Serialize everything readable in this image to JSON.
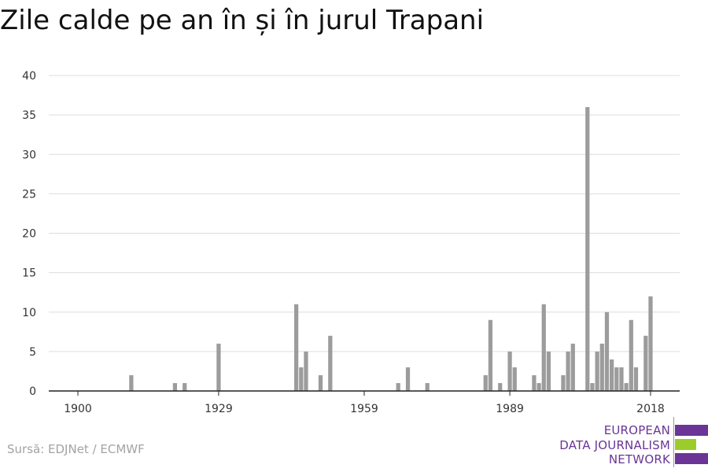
{
  "title": "Zile calde pe an în și în jurul Trapani",
  "source": "Sursă: EDJNet / ECMWF",
  "logo": {
    "lines": [
      "EUROPEAN",
      "DATA JOURNALISM",
      "NETWORK"
    ],
    "colors": {
      "text": "#6a3596",
      "purple": "#6a3596",
      "green": "#9ccc2c"
    }
  },
  "colors": {
    "bar": "#9c9c9c",
    "grid": "#dddddd",
    "axis": "#222222",
    "text": "#333333"
  },
  "chart_data": {
    "type": "bar",
    "title": "Zile calde pe an în și în jurul Trapani",
    "xlabel": "",
    "ylabel": "",
    "xlim": [
      1894,
      2024
    ],
    "ylim": [
      0,
      40
    ],
    "yticks": [
      0,
      5,
      10,
      15,
      20,
      25,
      30,
      35,
      40
    ],
    "xticks": [
      1900,
      1929,
      1959,
      1989,
      2018
    ],
    "grid": true,
    "legend": "none",
    "x": [
      1911,
      1920,
      1922,
      1929,
      1945,
      1946,
      1947,
      1950,
      1952,
      1966,
      1968,
      1972,
      1984,
      1985,
      1987,
      1989,
      1990,
      1994,
      1995,
      1996,
      1997,
      2000,
      2001,
      2002,
      2005,
      2006,
      2007,
      2008,
      2009,
      2010,
      2011,
      2012,
      2013,
      2014,
      2015,
      2017,
      2018
    ],
    "values": [
      2,
      1,
      1,
      6,
      11,
      3,
      5,
      2,
      7,
      1,
      3,
      1,
      2,
      9,
      1,
      5,
      3,
      2,
      1,
      11,
      5,
      2,
      5,
      6,
      36,
      1,
      5,
      6,
      10,
      4,
      3,
      3,
      1,
      9,
      3,
      7,
      12
    ]
  }
}
